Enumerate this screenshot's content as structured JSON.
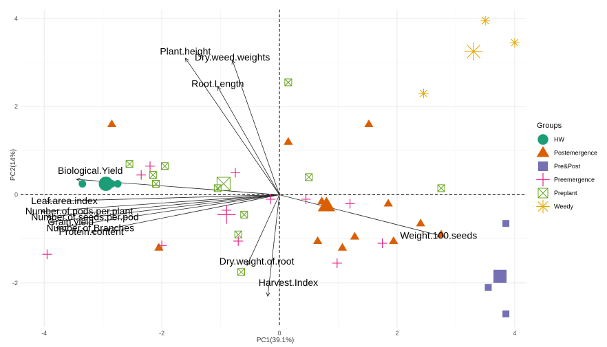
{
  "chart_data": {
    "type": "scatter",
    "subtype": "pca-biplot",
    "xlabel": "PC1(39.1%)",
    "ylabel": "PC2(14%)",
    "xlim": [
      -4.4,
      4.2
    ],
    "ylim": [
      -3.0,
      4.2
    ],
    "x_ticks": [
      -4,
      -2,
      0,
      2,
      4
    ],
    "y_ticks": [
      -2,
      0,
      2,
      4
    ],
    "grid": true,
    "reference_lines": "dashed lines at x=0 and y=0",
    "legend": {
      "title": "Groups",
      "position": "right",
      "entries": [
        "HW",
        "Postemergence",
        "Pre&Post",
        "Preemergence",
        "Preplant",
        "Weedy"
      ]
    },
    "groups": [
      {
        "name": "HW",
        "color": "#1b9e77",
        "marker": "circle",
        "points": [
          [
            -3.35,
            0.25
          ],
          [
            -2.85,
            0.25
          ],
          [
            -2.75,
            0.25
          ]
        ],
        "centroid": [
          -2.95,
          0.25
        ]
      },
      {
        "name": "Postemergence",
        "color": "#d95f02",
        "marker": "triangle",
        "points": [
          [
            -2.85,
            1.6
          ],
          [
            0.15,
            1.2
          ],
          [
            1.52,
            1.6
          ],
          [
            0.72,
            -0.15
          ],
          [
            0.75,
            -0.3
          ],
          [
            0.65,
            -1.05
          ],
          [
            1.07,
            -1.2
          ],
          [
            1.28,
            -0.95
          ],
          [
            1.85,
            -0.2
          ],
          [
            1.94,
            -1.05
          ],
          [
            2.4,
            -0.65
          ],
          [
            2.75,
            -0.9
          ],
          [
            -2.05,
            -1.2
          ]
        ],
        "centroid": [
          0.8,
          -0.25
        ]
      },
      {
        "name": "Pre&Post",
        "color": "#7570b3",
        "marker": "square",
        "points": [
          [
            3.85,
            -0.65
          ],
          [
            3.55,
            -2.1
          ],
          [
            3.85,
            -2.7
          ]
        ],
        "centroid": [
          3.75,
          -1.85
        ]
      },
      {
        "name": "Preemergence",
        "color": "#e7298a",
        "marker": "plus",
        "points": [
          [
            -3.95,
            -1.35
          ],
          [
            -2.35,
            0.45
          ],
          [
            -2.2,
            0.65
          ],
          [
            -2.0,
            -1.15
          ],
          [
            -0.75,
            0.5
          ],
          [
            -0.7,
            -1.05
          ],
          [
            -0.15,
            -0.1
          ],
          [
            0.45,
            -0.1
          ],
          [
            1.2,
            -0.2
          ],
          [
            1.75,
            -1.1
          ],
          [
            0.98,
            -1.55
          ],
          [
            -0.9,
            -0.35
          ]
        ],
        "centroid": [
          -0.9,
          -0.45
        ]
      },
      {
        "name": "Preplant",
        "color": "#66a61e",
        "marker": "boxed-x",
        "points": [
          [
            -2.55,
            0.7
          ],
          [
            -2.15,
            0.45
          ],
          [
            -2.1,
            0.25
          ],
          [
            -1.95,
            0.65
          ],
          [
            -1.05,
            0.15
          ],
          [
            -0.6,
            -0.45
          ],
          [
            -0.7,
            -0.9
          ],
          [
            -0.65,
            -1.75
          ],
          [
            0.15,
            2.55
          ],
          [
            0.5,
            0.4
          ],
          [
            2.75,
            0.15
          ]
        ],
        "centroid": [
          -0.95,
          0.25
        ]
      },
      {
        "name": "Weedy",
        "color": "#e6ab02",
        "marker": "asterisk",
        "points": [
          [
            3.5,
            3.95
          ],
          [
            4.0,
            3.45
          ],
          [
            2.45,
            2.3
          ]
        ],
        "centroid": [
          3.3,
          3.25
        ]
      }
    ],
    "loadings": [
      {
        "name": "Plant.height",
        "x": -1.6,
        "y": 3.1
      },
      {
        "name": "Dry.weed.weights",
        "x": -0.8,
        "y": 3.05
      },
      {
        "name": "Root.Length",
        "x": -1.05,
        "y": 2.45
      },
      {
        "name": "Biological.Yield",
        "x": -3.45,
        "y": 0.35
      },
      {
        "name": "Leaf.area.index",
        "x": -3.95,
        "y": -0.15
      },
      {
        "name": "Weight.100.seeds",
        "x": 2.8,
        "y": -0.95
      },
      {
        "name": "Dry.weight.of.root",
        "x": -0.55,
        "y": -1.6
      },
      {
        "name": "Harvest.Index",
        "x": -0.2,
        "y": -2.3
      },
      {
        "name": "Number.of.pods.per.plant",
        "x": -4.05,
        "y": -0.38
      },
      {
        "name": "Number.of.seeds.per.pod",
        "x": -3.95,
        "y": -0.5
      },
      {
        "name": "Grain.yield",
        "x": -3.9,
        "y": -0.62
      },
      {
        "name": "Number.of.Branches",
        "x": -3.8,
        "y": -0.75
      },
      {
        "name": "Protein.content",
        "x": -3.2,
        "y": -0.85
      }
    ],
    "visible_labels": [
      {
        "text": "Plant.height",
        "ref": "Plant.height"
      },
      {
        "text": "Dry.weed.weights",
        "ref": "Dry.weed.weights"
      },
      {
        "text": "Root.Length",
        "ref": "Root.Length"
      },
      {
        "text": "Biological.Yield",
        "ref": "Biological.Yield"
      },
      {
        "text": "Leaf.area.index",
        "ref": "Leaf.area.index"
      },
      {
        "text": "Weight.100.seeds",
        "ref": "Weight.100.seeds"
      },
      {
        "text": "Dry.weight.of.root",
        "ref": "Dry.weight.of.root"
      },
      {
        "text": "Harvest.Index",
        "ref": "Harvest.Index"
      },
      {
        "text": "Number.of.pods.per.plant",
        "ref": "Number.of.pods.per.plant"
      },
      {
        "text": "Number.of.seeds.per.pod",
        "ref": "Number.of.seeds.per.pod"
      },
      {
        "text": "Grain.yield",
        "ref": "Grain.yield"
      },
      {
        "text": "Number.of.Branches",
        "ref": "Number.of.Branches"
      },
      {
        "text": "Protein.content",
        "ref": "Protein.content"
      }
    ]
  }
}
